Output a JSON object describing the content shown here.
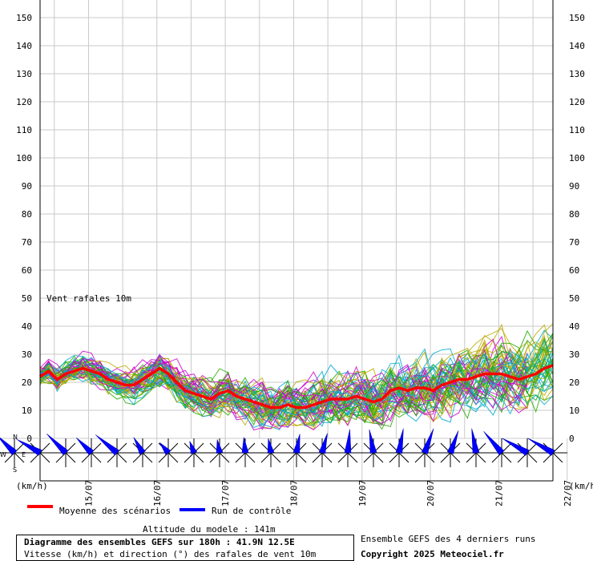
{
  "chart_data": {
    "type": "line",
    "title": "Diagramme des ensembles GEFS sur 180h : 41.9N 12.5E",
    "subtitle": "Vitesse (km/h) et direction (°) des rafales de vent 10m",
    "inner_label": "Vent rafales 10m",
    "ylabel_left": "(km/h)",
    "ylabel_right": "(km/h)",
    "ylim": [
      0,
      150
    ],
    "yticks": [
      0,
      10,
      20,
      30,
      40,
      50,
      60,
      70,
      80,
      90,
      100,
      110,
      120,
      130,
      140,
      150
    ],
    "xlim_hours": [
      0,
      180
    ],
    "xticks": [
      {
        "label": "15/07",
        "h": 17
      },
      {
        "label": "16/07",
        "h": 41
      },
      {
        "label": "17/07",
        "h": 65
      },
      {
        "label": "18/07",
        "h": 89
      },
      {
        "label": "19/07",
        "h": 113
      },
      {
        "label": "20/07",
        "h": 137
      },
      {
        "label": "21/07",
        "h": 161
      },
      {
        "label": "22/07",
        "h": 185
      }
    ],
    "mean_series": {
      "name": "Moyenne des scénarios",
      "color": "#ff0000",
      "x": [
        0,
        3,
        6,
        9,
        12,
        15,
        18,
        21,
        24,
        27,
        30,
        33,
        36,
        39,
        42,
        45,
        48,
        51,
        54,
        57,
        60,
        63,
        66,
        69,
        72,
        75,
        78,
        81,
        84,
        87,
        90,
        93,
        96,
        99,
        102,
        105,
        108,
        111,
        114,
        117,
        120,
        123,
        126,
        129,
        132,
        135,
        138,
        141,
        144,
        147,
        150,
        153,
        156,
        159,
        162,
        165,
        168,
        171,
        174,
        177,
        180
      ],
      "values": [
        22,
        24,
        21,
        23,
        24,
        25,
        24,
        23,
        21,
        20,
        19,
        19,
        21,
        23,
        25,
        23,
        20,
        17,
        16,
        15,
        14,
        16,
        17,
        15,
        14,
        13,
        12,
        11,
        11,
        12,
        11,
        11,
        12,
        13,
        14,
        14,
        14,
        15,
        14,
        13,
        14,
        17,
        18,
        17,
        18,
        18,
        17,
        19,
        20,
        21,
        21,
        22,
        23,
        23,
        23,
        22,
        21,
        22,
        23,
        25,
        26
      ]
    },
    "control_label": "Run de contrôle",
    "control_color": "#0000ff",
    "ensemble_colors": [
      "#22aa00",
      "#bbaa00",
      "#cc00cc",
      "#00aacc"
    ],
    "wind_direction_deg": [
      315,
      300,
      315,
      315,
      310,
      330,
      320,
      340,
      350,
      355,
      350,
      10,
      15,
      5,
      350,
      10,
      20,
      20,
      350,
      320,
      300,
      300
    ],
    "wind_speed_kmh": [
      22,
      24,
      24,
      19,
      25,
      16,
      12,
      11,
      12,
      14,
      13,
      17,
      18,
      21,
      21,
      22,
      23,
      21,
      22,
      25,
      26,
      26
    ],
    "compass": {
      "n": "N",
      "s": "S",
      "w": "W",
      "e": "E"
    }
  },
  "footer": {
    "altitude": "Altitude du modele : 141m",
    "ensemble_note": "Ensemble GEFS des 4 derniers runs",
    "copyright": "Copyright 2025 Meteociel.fr"
  }
}
